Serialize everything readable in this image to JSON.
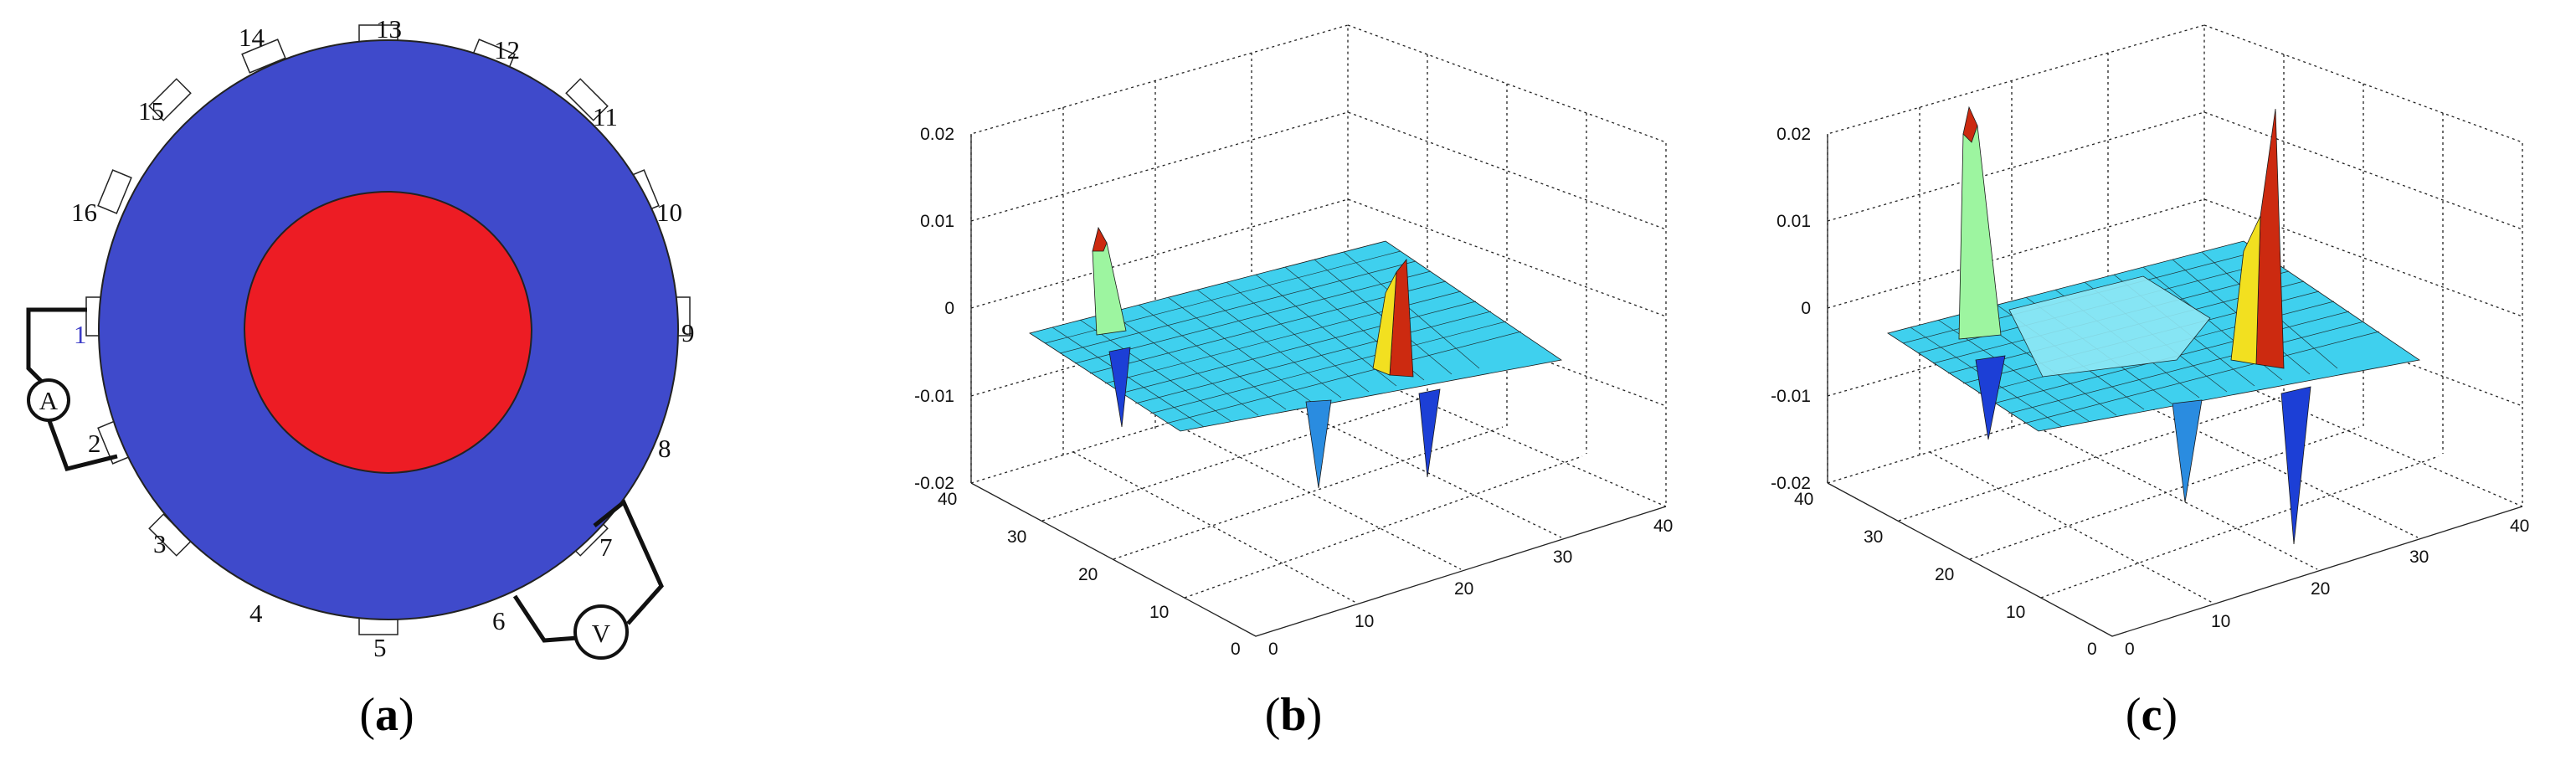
{
  "panel_a": {
    "label_open": "(",
    "label_letter": "a",
    "label_close": ")",
    "colors": {
      "outer_disk": "#3f4acb",
      "inner_disk": "#ed1c24",
      "electrode_fill": "#ffffff",
      "wire": "#111111",
      "electrode_1_text": "#3d3dc8"
    },
    "electrodes": [
      "1",
      "2",
      "3",
      "4",
      "5",
      "6",
      "7",
      "8",
      "9",
      "10",
      "11",
      "12",
      "13",
      "14",
      "15",
      "16"
    ],
    "ammeter_label": "A",
    "voltmeter_label": "V"
  },
  "panel_b": {
    "label_open": "(",
    "label_letter": "b",
    "label_close": ")",
    "z_ticks": [
      "0.02",
      "0.01",
      "0",
      "-0.01",
      "-0.02"
    ],
    "y_ticks": [
      "40",
      "30",
      "20",
      "10",
      "0"
    ],
    "x_ticks": [
      "0",
      "10",
      "20",
      "30",
      "40"
    ]
  },
  "panel_c": {
    "label_open": "(",
    "label_letter": "c",
    "label_close": ")",
    "z_ticks": [
      "0.02",
      "0.01",
      "0",
      "-0.01",
      "-0.02"
    ],
    "y_ticks": [
      "40",
      "30",
      "20",
      "10",
      "0"
    ],
    "x_ticks": [
      "0",
      "10",
      "20",
      "30",
      "40"
    ]
  },
  "surface_colors": {
    "base": "#3fd0ee",
    "low": "#1c3fd6",
    "mid": "#9df5a0",
    "high": "#f2e020",
    "peak": "#cc2a10",
    "mesh": "#1a1a1a"
  }
}
